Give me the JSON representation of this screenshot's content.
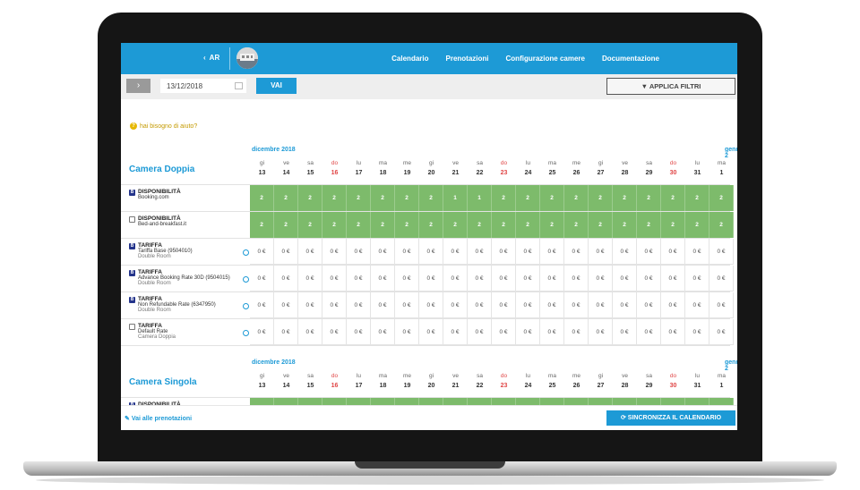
{
  "header": {
    "back_label": "AR",
    "nav": [
      "Calendario",
      "Prenotazioni",
      "Configurazione camere",
      "Documentazione"
    ]
  },
  "toolbar": {
    "next_label": "›",
    "date_value": "13/12/2018",
    "vai_label": "VAI",
    "filter_label": "APPLICA FILTRI"
  },
  "help": {
    "label": "hai bisogno di aiuto?"
  },
  "calendar": {
    "month_label": "dicembre 2018",
    "next_month_label": "gennaio 2",
    "days": [
      {
        "w": "gi",
        "d": "13",
        "red": false
      },
      {
        "w": "ve",
        "d": "14",
        "red": false
      },
      {
        "w": "sa",
        "d": "15",
        "red": false
      },
      {
        "w": "do",
        "d": "16",
        "red": true
      },
      {
        "w": "lu",
        "d": "17",
        "red": false
      },
      {
        "w": "ma",
        "d": "18",
        "red": false
      },
      {
        "w": "me",
        "d": "19",
        "red": false
      },
      {
        "w": "gi",
        "d": "20",
        "red": false
      },
      {
        "w": "ve",
        "d": "21",
        "red": false
      },
      {
        "w": "sa",
        "d": "22",
        "red": false
      },
      {
        "w": "do",
        "d": "23",
        "red": true
      },
      {
        "w": "lu",
        "d": "24",
        "red": false
      },
      {
        "w": "ma",
        "d": "25",
        "red": false
      },
      {
        "w": "me",
        "d": "26",
        "red": false
      },
      {
        "w": "gi",
        "d": "27",
        "red": false
      },
      {
        "w": "ve",
        "d": "28",
        "red": false
      },
      {
        "w": "sa",
        "d": "29",
        "red": false
      },
      {
        "w": "do",
        "d": "30",
        "red": true
      },
      {
        "w": "lu",
        "d": "31",
        "red": false
      },
      {
        "w": "ma",
        "d": "1",
        "red": false
      }
    ]
  },
  "rooms": [
    {
      "name": "Camera Doppia",
      "rows": [
        {
          "type": "avail",
          "icon": "booking",
          "title": "DISPONIBILITÀ",
          "sub": "Booking.com",
          "sub2": "",
          "values": [
            "2",
            "2",
            "2",
            "2",
            "2",
            "2",
            "2",
            "2",
            "1",
            "1",
            "2",
            "2",
            "2",
            "2",
            "2",
            "2",
            "2",
            "2",
            "2",
            "2"
          ]
        },
        {
          "type": "avail",
          "icon": "house",
          "title": "DISPONIBILITÀ",
          "sub": "Bed-and-breakfast.it",
          "sub2": "",
          "values": [
            "2",
            "2",
            "2",
            "2",
            "2",
            "2",
            "2",
            "2",
            "2",
            "2",
            "2",
            "2",
            "2",
            "2",
            "2",
            "2",
            "2",
            "2",
            "2",
            "2"
          ]
        },
        {
          "type": "rate",
          "icon": "booking",
          "title": "TARIFFA",
          "sub": "Tariffa Base (9504010)",
          "sub2": "Double Room",
          "values": [
            "0 €",
            "0 €",
            "0 €",
            "0 €",
            "0 €",
            "0 €",
            "0 €",
            "0 €",
            "0 €",
            "0 €",
            "0 €",
            "0 €",
            "0 €",
            "0 €",
            "0 €",
            "0 €",
            "0 €",
            "0 €",
            "0 €",
            "0 €"
          ]
        },
        {
          "type": "rate",
          "icon": "booking",
          "title": "TARIFFA",
          "sub": "Advance Booking Rate 30D (9504015)",
          "sub2": "Double Room",
          "values": [
            "0 €",
            "0 €",
            "0 €",
            "0 €",
            "0 €",
            "0 €",
            "0 €",
            "0 €",
            "0 €",
            "0 €",
            "0 €",
            "0 €",
            "0 €",
            "0 €",
            "0 €",
            "0 €",
            "0 €",
            "0 €",
            "0 €",
            "0 €"
          ]
        },
        {
          "type": "rate",
          "icon": "booking",
          "title": "TARIFFA",
          "sub": "Non Refundable Rate (6347950)",
          "sub2": "Double Room",
          "values": [
            "0 €",
            "0 €",
            "0 €",
            "0 €",
            "0 €",
            "0 €",
            "0 €",
            "0 €",
            "0 €",
            "0 €",
            "0 €",
            "0 €",
            "0 €",
            "0 €",
            "0 €",
            "0 €",
            "0 €",
            "0 €",
            "0 €",
            "0 €"
          ]
        },
        {
          "type": "rate",
          "icon": "house",
          "title": "TARIFFA",
          "sub": "Default Rate",
          "sub2": "Camera Doppia",
          "values": [
            "0 €",
            "0 €",
            "0 €",
            "0 €",
            "0 €",
            "0 €",
            "0 €",
            "0 €",
            "0 €",
            "0 €",
            "0 €",
            "0 €",
            "0 €",
            "0 €",
            "0 €",
            "0 €",
            "0 €",
            "0 €",
            "0 €",
            "0 €"
          ]
        }
      ]
    },
    {
      "name": "Camera Singola",
      "rows": [
        {
          "type": "avail",
          "icon": "booking",
          "title": "DISPONIBILITÀ",
          "sub": "",
          "sub2": "",
          "values": [
            "",
            "",
            "",
            "",
            "",
            "",
            "",
            "",
            "",
            "",
            "",
            "",
            "",
            "",
            "",
            "",
            "",
            "",
            "",
            ""
          ]
        }
      ]
    }
  ],
  "footer": {
    "link_label": "Vai alle prenotazioni",
    "sync_label": "SINCRONIZZA IL CALENDARIO"
  },
  "colors": {
    "accent": "#1d9ad6",
    "available": "#7dbb6b",
    "weekend": "#e04646"
  }
}
